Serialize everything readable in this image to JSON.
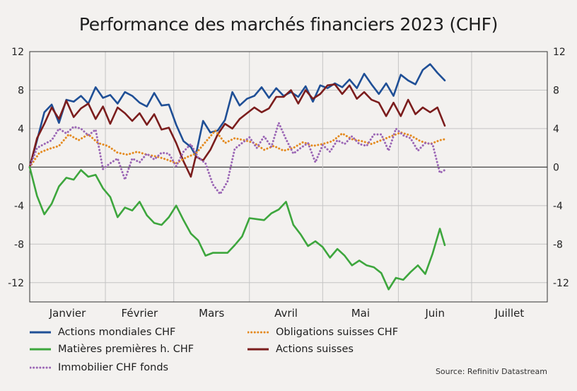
{
  "chart_data": {
    "type": "line",
    "title": "Performance des marchés financiers 2023 (CHF)",
    "source": "Source: Refinitiv Datastream",
    "months": [
      "Janvier",
      "Février",
      "Mars",
      "Avril",
      "Mai",
      "Juin",
      "Juillet"
    ],
    "ylim": [
      -14,
      12
    ],
    "yticks": [
      12,
      8,
      4,
      0,
      -4,
      -8,
      -12
    ],
    "grid": true,
    "legend_position": "bottom",
    "series": [
      {
        "name": "Actions mondiales CHF",
        "color": "#1f4f96",
        "style": "solid",
        "x": [
          "2023-01-01",
          "2023-01-04",
          "2023-01-07",
          "2023-01-10",
          "2023-01-13",
          "2023-01-16",
          "2023-01-19",
          "2023-01-22",
          "2023-01-25",
          "2023-01-28",
          "2023-01-31",
          "2023-02-03",
          "2023-02-06",
          "2023-02-09",
          "2023-02-12",
          "2023-02-15",
          "2023-02-18",
          "2023-02-21",
          "2023-02-24",
          "2023-02-27",
          "2023-03-02",
          "2023-03-05",
          "2023-03-08",
          "2023-03-10",
          "2023-03-13",
          "2023-03-16",
          "2023-03-19",
          "2023-03-22",
          "2023-03-25",
          "2023-03-28",
          "2023-03-31",
          "2023-04-03",
          "2023-04-06",
          "2023-04-09",
          "2023-04-12",
          "2023-04-15",
          "2023-04-18",
          "2023-04-21",
          "2023-04-24",
          "2023-04-27",
          "2023-04-30",
          "2023-05-03",
          "2023-05-06",
          "2023-05-09",
          "2023-05-12",
          "2023-05-15",
          "2023-05-18",
          "2023-05-21",
          "2023-05-24",
          "2023-05-27",
          "2023-05-30",
          "2023-06-02",
          "2023-06-05",
          "2023-06-08",
          "2023-06-11",
          "2023-06-14",
          "2023-06-17",
          "2023-06-20"
        ],
        "values": [
          0,
          2.8,
          5.7,
          6.5,
          4.6,
          7.0,
          6.8,
          7.4,
          6.6,
          8.3,
          7.2,
          7.5,
          6.6,
          7.8,
          7.4,
          6.7,
          6.3,
          7.7,
          6.4,
          6.5,
          4.4,
          2.7,
          2.1,
          1.2,
          4.8,
          3.6,
          3.8,
          4.9,
          7.8,
          6.4,
          7.1,
          7.4,
          8.3,
          7.2,
          8.2,
          7.4,
          7.8,
          7.3,
          8.4,
          6.8,
          8.5,
          8.2,
          8.7,
          8.3,
          9.1,
          8.2,
          9.7,
          8.6,
          7.6,
          8.7,
          7.4,
          9.6,
          9.0,
          8.6,
          10.1,
          10.7,
          9.8,
          9.0
        ]
      },
      {
        "name": "Actions suisses",
        "color": "#7b1d1d",
        "style": "solid",
        "x": [
          "2023-01-01",
          "2023-01-04",
          "2023-01-07",
          "2023-01-10",
          "2023-01-13",
          "2023-01-16",
          "2023-01-19",
          "2023-01-22",
          "2023-01-25",
          "2023-01-28",
          "2023-01-31",
          "2023-02-03",
          "2023-02-06",
          "2023-02-09",
          "2023-02-12",
          "2023-02-15",
          "2023-02-18",
          "2023-02-21",
          "2023-02-24",
          "2023-02-27",
          "2023-03-02",
          "2023-03-05",
          "2023-03-08",
          "2023-03-10",
          "2023-03-13",
          "2023-03-16",
          "2023-03-19",
          "2023-03-22",
          "2023-03-25",
          "2023-03-28",
          "2023-03-31",
          "2023-04-03",
          "2023-04-06",
          "2023-04-09",
          "2023-04-12",
          "2023-04-15",
          "2023-04-18",
          "2023-04-21",
          "2023-04-24",
          "2023-04-27",
          "2023-04-30",
          "2023-05-03",
          "2023-05-06",
          "2023-05-09",
          "2023-05-12",
          "2023-05-15",
          "2023-05-18",
          "2023-05-21",
          "2023-05-24",
          "2023-05-27",
          "2023-05-30",
          "2023-06-02",
          "2023-06-05",
          "2023-06-08",
          "2023-06-11",
          "2023-06-14",
          "2023-06-17",
          "2023-06-20"
        ],
        "values": [
          0,
          3.0,
          4.5,
          6.2,
          5.0,
          6.9,
          5.2,
          6.1,
          6.6,
          5.0,
          6.3,
          4.5,
          6.2,
          5.6,
          4.8,
          5.6,
          4.4,
          5.5,
          3.9,
          4.1,
          2.5,
          0.6,
          -1.0,
          1.1,
          0.7,
          1.8,
          3.4,
          4.5,
          4.0,
          5.0,
          5.6,
          6.2,
          5.7,
          6.1,
          7.3,
          7.3,
          8.0,
          6.6,
          8.0,
          7.1,
          7.6,
          8.5,
          8.6,
          7.6,
          8.5,
          7.1,
          7.8,
          7.0,
          6.7,
          5.3,
          6.7,
          5.3,
          7.0,
          5.5,
          6.2,
          5.7,
          6.2,
          4.3
        ]
      },
      {
        "name": "Obligations suisses CHF",
        "color": "#e48a1f",
        "style": "dotted",
        "x": [
          "2023-01-01",
          "2023-01-05",
          "2023-01-09",
          "2023-01-13",
          "2023-01-17",
          "2023-01-21",
          "2023-01-25",
          "2023-01-29",
          "2023-02-02",
          "2023-02-06",
          "2023-02-10",
          "2023-02-14",
          "2023-02-18",
          "2023-02-22",
          "2023-02-26",
          "2023-03-02",
          "2023-03-06",
          "2023-03-10",
          "2023-03-14",
          "2023-03-18",
          "2023-03-22",
          "2023-03-26",
          "2023-03-30",
          "2023-04-03",
          "2023-04-07",
          "2023-04-11",
          "2023-04-15",
          "2023-04-19",
          "2023-04-23",
          "2023-04-27",
          "2023-05-01",
          "2023-05-05",
          "2023-05-09",
          "2023-05-13",
          "2023-05-17",
          "2023-05-21",
          "2023-05-25",
          "2023-05-29",
          "2023-06-02",
          "2023-06-06",
          "2023-06-10",
          "2023-06-14",
          "2023-06-18",
          "2023-06-20"
        ],
        "values": [
          0,
          1.5,
          1.9,
          2.2,
          3.4,
          2.8,
          3.4,
          2.5,
          2.2,
          1.5,
          1.3,
          1.6,
          1.3,
          1.1,
          0.8,
          0.4,
          1.0,
          1.4,
          2.6,
          3.8,
          2.5,
          3.0,
          2.8,
          2.5,
          1.8,
          2.2,
          1.7,
          2.0,
          2.6,
          2.2,
          2.4,
          2.7,
          3.5,
          2.9,
          2.7,
          2.4,
          2.8,
          3.2,
          3.6,
          3.3,
          2.7,
          2.4,
          2.8,
          2.9
        ]
      },
      {
        "name": "Immobilier CHF fonds",
        "color": "#9b66b5",
        "style": "dotted",
        "x": [
          "2023-01-01",
          "2023-01-04",
          "2023-01-07",
          "2023-01-10",
          "2023-01-13",
          "2023-01-16",
          "2023-01-19",
          "2023-01-22",
          "2023-01-25",
          "2023-01-28",
          "2023-01-31",
          "2023-02-03",
          "2023-02-06",
          "2023-02-09",
          "2023-02-12",
          "2023-02-15",
          "2023-02-18",
          "2023-02-21",
          "2023-02-24",
          "2023-02-27",
          "2023-03-02",
          "2023-03-05",
          "2023-03-08",
          "2023-03-11",
          "2023-03-14",
          "2023-03-17",
          "2023-03-20",
          "2023-03-23",
          "2023-03-26",
          "2023-03-29",
          "2023-04-01",
          "2023-04-04",
          "2023-04-07",
          "2023-04-10",
          "2023-04-13",
          "2023-04-16",
          "2023-04-19",
          "2023-04-22",
          "2023-04-25",
          "2023-04-28",
          "2023-05-01",
          "2023-05-04",
          "2023-05-07",
          "2023-05-10",
          "2023-05-13",
          "2023-05-16",
          "2023-05-19",
          "2023-05-22",
          "2023-05-25",
          "2023-05-28",
          "2023-05-31",
          "2023-06-03",
          "2023-06-06",
          "2023-06-09",
          "2023-06-12",
          "2023-06-15",
          "2023-06-18",
          "2023-06-20"
        ],
        "values": [
          0,
          2.0,
          2.4,
          2.8,
          4.0,
          3.5,
          4.2,
          4.0,
          3.3,
          3.9,
          -0.2,
          0.4,
          0.9,
          -1.3,
          0.9,
          0.5,
          1.4,
          0.8,
          1.5,
          1.4,
          0.1,
          1.6,
          2.4,
          1.0,
          0.4,
          -1.8,
          -2.8,
          -1.5,
          1.9,
          2.5,
          3.1,
          2.0,
          3.2,
          2.1,
          4.6,
          2.9,
          1.4,
          2.0,
          2.5,
          0.5,
          2.3,
          1.6,
          2.8,
          2.4,
          3.2,
          2.4,
          2.2,
          3.4,
          3.4,
          1.7,
          4.0,
          3.3,
          3.0,
          1.7,
          2.5,
          2.4,
          -0.6,
          -0.3
        ]
      },
      {
        "name": "Matières premières h. CHF",
        "color": "#3da63d",
        "style": "solid",
        "x": [
          "2023-01-01",
          "2023-01-04",
          "2023-01-07",
          "2023-01-10",
          "2023-01-13",
          "2023-01-16",
          "2023-01-19",
          "2023-01-22",
          "2023-01-25",
          "2023-01-28",
          "2023-01-31",
          "2023-02-03",
          "2023-02-06",
          "2023-02-09",
          "2023-02-12",
          "2023-02-15",
          "2023-02-18",
          "2023-02-21",
          "2023-02-24",
          "2023-02-27",
          "2023-03-02",
          "2023-03-05",
          "2023-03-08",
          "2023-03-11",
          "2023-03-14",
          "2023-03-17",
          "2023-03-20",
          "2023-03-23",
          "2023-03-26",
          "2023-03-29",
          "2023-04-01",
          "2023-04-04",
          "2023-04-07",
          "2023-04-10",
          "2023-04-13",
          "2023-04-16",
          "2023-04-19",
          "2023-04-22",
          "2023-04-25",
          "2023-04-28",
          "2023-05-01",
          "2023-05-04",
          "2023-05-07",
          "2023-05-10",
          "2023-05-13",
          "2023-05-16",
          "2023-05-19",
          "2023-05-22",
          "2023-05-25",
          "2023-05-28",
          "2023-05-31",
          "2023-06-03",
          "2023-06-06",
          "2023-06-09",
          "2023-06-12",
          "2023-06-15",
          "2023-06-18",
          "2023-06-20"
        ],
        "values": [
          0,
          -3.0,
          -4.9,
          -3.8,
          -2.0,
          -1.1,
          -1.3,
          -0.3,
          -1.0,
          -0.8,
          -2.2,
          -3.1,
          -5.2,
          -4.2,
          -4.5,
          -3.6,
          -5.0,
          -5.8,
          -6.0,
          -5.2,
          -4.0,
          -5.5,
          -6.9,
          -7.6,
          -9.2,
          -8.9,
          -8.9,
          -8.9,
          -8.1,
          -7.2,
          -5.3,
          -5.4,
          -5.5,
          -4.8,
          -4.4,
          -3.6,
          -6.0,
          -7.0,
          -8.2,
          -7.7,
          -8.3,
          -9.4,
          -8.5,
          -9.2,
          -10.2,
          -9.7,
          -10.2,
          -10.4,
          -11.0,
          -12.7,
          -11.5,
          -11.7,
          -10.9,
          -10.2,
          -11.1,
          -9.0,
          -6.4,
          -8.1
        ]
      }
    ]
  }
}
